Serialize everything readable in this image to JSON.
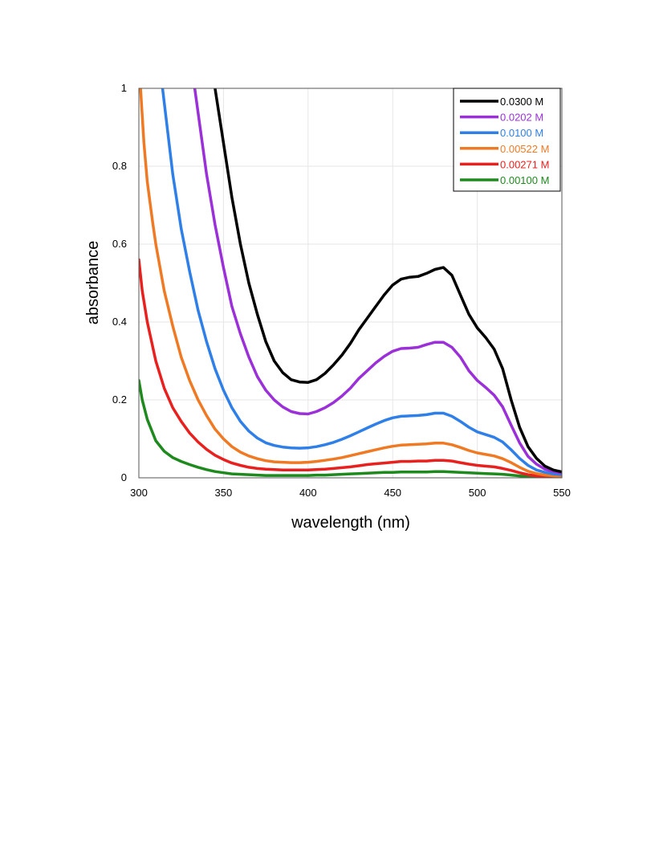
{
  "chart_data": {
    "type": "line",
    "title": "",
    "xlabel": "wavelength (nm)",
    "ylabel": "absorbance",
    "xlim": [
      300,
      550
    ],
    "ylim": [
      0,
      1
    ],
    "x_ticks": [
      "300",
      "350",
      "400",
      "450",
      "500",
      "550"
    ],
    "y_ticks": [
      "0",
      "0.2",
      "0.4",
      "0.6",
      "0.8",
      "1"
    ],
    "grid": true,
    "legend_position": "top-right",
    "series": [
      {
        "name": "0.0300 M",
        "color": "#000000",
        "points": [
          [
            345,
            1.0
          ],
          [
            350,
            0.86
          ],
          [
            355,
            0.72
          ],
          [
            360,
            0.6
          ],
          [
            365,
            0.5
          ],
          [
            370,
            0.42
          ],
          [
            375,
            0.35
          ],
          [
            380,
            0.3
          ],
          [
            385,
            0.27
          ],
          [
            390,
            0.252
          ],
          [
            395,
            0.246
          ],
          [
            400,
            0.245
          ],
          [
            405,
            0.252
          ],
          [
            410,
            0.268
          ],
          [
            415,
            0.29
          ],
          [
            420,
            0.315
          ],
          [
            425,
            0.345
          ],
          [
            430,
            0.38
          ],
          [
            435,
            0.41
          ],
          [
            440,
            0.44
          ],
          [
            445,
            0.47
          ],
          [
            450,
            0.495
          ],
          [
            455,
            0.51
          ],
          [
            460,
            0.515
          ],
          [
            465,
            0.517
          ],
          [
            470,
            0.525
          ],
          [
            475,
            0.535
          ],
          [
            480,
            0.54
          ],
          [
            485,
            0.52
          ],
          [
            490,
            0.47
          ],
          [
            495,
            0.42
          ],
          [
            500,
            0.385
          ],
          [
            505,
            0.36
          ],
          [
            510,
            0.33
          ],
          [
            515,
            0.28
          ],
          [
            520,
            0.2
          ],
          [
            525,
            0.13
          ],
          [
            530,
            0.08
          ],
          [
            535,
            0.05
          ],
          [
            540,
            0.03
          ],
          [
            545,
            0.02
          ],
          [
            550,
            0.015
          ]
        ]
      },
      {
        "name": "0.0202 M",
        "color": "#9b30d9",
        "points": [
          [
            333,
            1.0
          ],
          [
            340,
            0.78
          ],
          [
            345,
            0.65
          ],
          [
            350,
            0.54
          ],
          [
            355,
            0.44
          ],
          [
            360,
            0.37
          ],
          [
            365,
            0.31
          ],
          [
            370,
            0.26
          ],
          [
            375,
            0.225
          ],
          [
            380,
            0.2
          ],
          [
            385,
            0.182
          ],
          [
            390,
            0.17
          ],
          [
            395,
            0.165
          ],
          [
            400,
            0.164
          ],
          [
            405,
            0.17
          ],
          [
            410,
            0.18
          ],
          [
            415,
            0.193
          ],
          [
            420,
            0.21
          ],
          [
            425,
            0.23
          ],
          [
            430,
            0.255
          ],
          [
            435,
            0.275
          ],
          [
            440,
            0.295
          ],
          [
            445,
            0.312
          ],
          [
            450,
            0.325
          ],
          [
            455,
            0.332
          ],
          [
            460,
            0.333
          ],
          [
            465,
            0.335
          ],
          [
            470,
            0.342
          ],
          [
            475,
            0.348
          ],
          [
            480,
            0.348
          ],
          [
            485,
            0.335
          ],
          [
            490,
            0.31
          ],
          [
            495,
            0.275
          ],
          [
            500,
            0.25
          ],
          [
            505,
            0.232
          ],
          [
            510,
            0.212
          ],
          [
            515,
            0.182
          ],
          [
            520,
            0.135
          ],
          [
            525,
            0.09
          ],
          [
            530,
            0.055
          ],
          [
            535,
            0.035
          ],
          [
            540,
            0.022
          ],
          [
            545,
            0.016
          ],
          [
            550,
            0.012
          ]
        ]
      },
      {
        "name": "0.0100 M",
        "color": "#2f7fe8",
        "points": [
          [
            314,
            1.0
          ],
          [
            320,
            0.78
          ],
          [
            325,
            0.64
          ],
          [
            330,
            0.53
          ],
          [
            335,
            0.43
          ],
          [
            340,
            0.35
          ],
          [
            345,
            0.28
          ],
          [
            350,
            0.225
          ],
          [
            355,
            0.18
          ],
          [
            360,
            0.145
          ],
          [
            365,
            0.12
          ],
          [
            370,
            0.102
          ],
          [
            375,
            0.09
          ],
          [
            380,
            0.083
          ],
          [
            385,
            0.079
          ],
          [
            390,
            0.077
          ],
          [
            395,
            0.076
          ],
          [
            400,
            0.077
          ],
          [
            405,
            0.08
          ],
          [
            410,
            0.085
          ],
          [
            415,
            0.091
          ],
          [
            420,
            0.099
          ],
          [
            425,
            0.108
          ],
          [
            430,
            0.118
          ],
          [
            435,
            0.128
          ],
          [
            440,
            0.138
          ],
          [
            445,
            0.147
          ],
          [
            450,
            0.154
          ],
          [
            455,
            0.158
          ],
          [
            460,
            0.159
          ],
          [
            465,
            0.16
          ],
          [
            470,
            0.162
          ],
          [
            475,
            0.166
          ],
          [
            480,
            0.166
          ],
          [
            485,
            0.158
          ],
          [
            490,
            0.145
          ],
          [
            495,
            0.13
          ],
          [
            500,
            0.118
          ],
          [
            505,
            0.111
          ],
          [
            510,
            0.104
          ],
          [
            515,
            0.092
          ],
          [
            520,
            0.072
          ],
          [
            525,
            0.05
          ],
          [
            530,
            0.032
          ],
          [
            535,
            0.02
          ],
          [
            540,
            0.014
          ],
          [
            545,
            0.01
          ],
          [
            550,
            0.008
          ]
        ]
      },
      {
        "name": "0.00522 M",
        "color": "#f07a24",
        "points": [
          [
            301,
            1.0
          ],
          [
            303,
            0.86
          ],
          [
            305,
            0.76
          ],
          [
            308,
            0.66
          ],
          [
            310,
            0.6
          ],
          [
            315,
            0.48
          ],
          [
            320,
            0.39
          ],
          [
            325,
            0.31
          ],
          [
            330,
            0.25
          ],
          [
            335,
            0.2
          ],
          [
            340,
            0.16
          ],
          [
            345,
            0.125
          ],
          [
            350,
            0.1
          ],
          [
            355,
            0.08
          ],
          [
            360,
            0.066
          ],
          [
            365,
            0.056
          ],
          [
            370,
            0.049
          ],
          [
            375,
            0.044
          ],
          [
            380,
            0.041
          ],
          [
            385,
            0.04
          ],
          [
            390,
            0.039
          ],
          [
            395,
            0.039
          ],
          [
            400,
            0.04
          ],
          [
            405,
            0.042
          ],
          [
            410,
            0.045
          ],
          [
            415,
            0.048
          ],
          [
            420,
            0.052
          ],
          [
            425,
            0.057
          ],
          [
            430,
            0.062
          ],
          [
            435,
            0.067
          ],
          [
            440,
            0.072
          ],
          [
            445,
            0.077
          ],
          [
            450,
            0.081
          ],
          [
            455,
            0.084
          ],
          [
            460,
            0.085
          ],
          [
            465,
            0.086
          ],
          [
            470,
            0.087
          ],
          [
            475,
            0.089
          ],
          [
            480,
            0.089
          ],
          [
            485,
            0.085
          ],
          [
            490,
            0.078
          ],
          [
            495,
            0.07
          ],
          [
            500,
            0.064
          ],
          [
            505,
            0.06
          ],
          [
            510,
            0.056
          ],
          [
            515,
            0.049
          ],
          [
            520,
            0.039
          ],
          [
            525,
            0.027
          ],
          [
            530,
            0.017
          ],
          [
            535,
            0.011
          ],
          [
            540,
            0.007
          ],
          [
            545,
            0.005
          ],
          [
            550,
            0.004
          ]
        ]
      },
      {
        "name": "0.00271 M",
        "color": "#e8201e",
        "points": [
          [
            300,
            0.56
          ],
          [
            302,
            0.48
          ],
          [
            305,
            0.4
          ],
          [
            310,
            0.3
          ],
          [
            315,
            0.23
          ],
          [
            320,
            0.18
          ],
          [
            325,
            0.145
          ],
          [
            330,
            0.115
          ],
          [
            335,
            0.092
          ],
          [
            340,
            0.073
          ],
          [
            345,
            0.058
          ],
          [
            350,
            0.047
          ],
          [
            355,
            0.038
          ],
          [
            360,
            0.032
          ],
          [
            365,
            0.027
          ],
          [
            370,
            0.024
          ],
          [
            375,
            0.022
          ],
          [
            380,
            0.021
          ],
          [
            385,
            0.02
          ],
          [
            390,
            0.02
          ],
          [
            395,
            0.02
          ],
          [
            400,
            0.02
          ],
          [
            405,
            0.021
          ],
          [
            410,
            0.022
          ],
          [
            415,
            0.024
          ],
          [
            420,
            0.026
          ],
          [
            425,
            0.028
          ],
          [
            430,
            0.031
          ],
          [
            435,
            0.034
          ],
          [
            440,
            0.036
          ],
          [
            445,
            0.038
          ],
          [
            450,
            0.04
          ],
          [
            455,
            0.042
          ],
          [
            460,
            0.042
          ],
          [
            465,
            0.043
          ],
          [
            470,
            0.043
          ],
          [
            475,
            0.045
          ],
          [
            480,
            0.045
          ],
          [
            485,
            0.043
          ],
          [
            490,
            0.039
          ],
          [
            495,
            0.035
          ],
          [
            500,
            0.032
          ],
          [
            505,
            0.03
          ],
          [
            510,
            0.028
          ],
          [
            515,
            0.024
          ],
          [
            520,
            0.019
          ],
          [
            525,
            0.013
          ],
          [
            530,
            0.008
          ],
          [
            535,
            0.005
          ],
          [
            540,
            0.003
          ],
          [
            545,
            0.002
          ],
          [
            550,
            0.002
          ]
        ]
      },
      {
        "name": "0.00100 M",
        "color": "#1e8a1e",
        "points": [
          [
            300,
            0.25
          ],
          [
            302,
            0.2
          ],
          [
            305,
            0.15
          ],
          [
            310,
            0.095
          ],
          [
            315,
            0.068
          ],
          [
            320,
            0.052
          ],
          [
            325,
            0.042
          ],
          [
            330,
            0.034
          ],
          [
            335,
            0.027
          ],
          [
            340,
            0.021
          ],
          [
            345,
            0.016
          ],
          [
            350,
            0.013
          ],
          [
            355,
            0.01
          ],
          [
            360,
            0.009
          ],
          [
            365,
            0.008
          ],
          [
            370,
            0.007
          ],
          [
            375,
            0.006
          ],
          [
            380,
            0.006
          ],
          [
            385,
            0.006
          ],
          [
            390,
            0.006
          ],
          [
            395,
            0.006
          ],
          [
            400,
            0.006
          ],
          [
            405,
            0.007
          ],
          [
            410,
            0.007
          ],
          [
            415,
            0.008
          ],
          [
            420,
            0.009
          ],
          [
            425,
            0.01
          ],
          [
            430,
            0.011
          ],
          [
            435,
            0.012
          ],
          [
            440,
            0.013
          ],
          [
            445,
            0.014
          ],
          [
            450,
            0.014
          ],
          [
            455,
            0.015
          ],
          [
            460,
            0.015
          ],
          [
            465,
            0.015
          ],
          [
            470,
            0.015
          ],
          [
            475,
            0.016
          ],
          [
            480,
            0.016
          ],
          [
            485,
            0.015
          ],
          [
            490,
            0.014
          ],
          [
            495,
            0.013
          ],
          [
            500,
            0.012
          ],
          [
            505,
            0.011
          ],
          [
            510,
            0.01
          ],
          [
            515,
            0.009
          ],
          [
            520,
            0.007
          ],
          [
            525,
            0.005
          ],
          [
            530,
            0.003
          ],
          [
            535,
            0.002
          ],
          [
            540,
            0.002
          ],
          [
            545,
            0.001
          ],
          [
            550,
            0.001
          ]
        ]
      }
    ]
  }
}
